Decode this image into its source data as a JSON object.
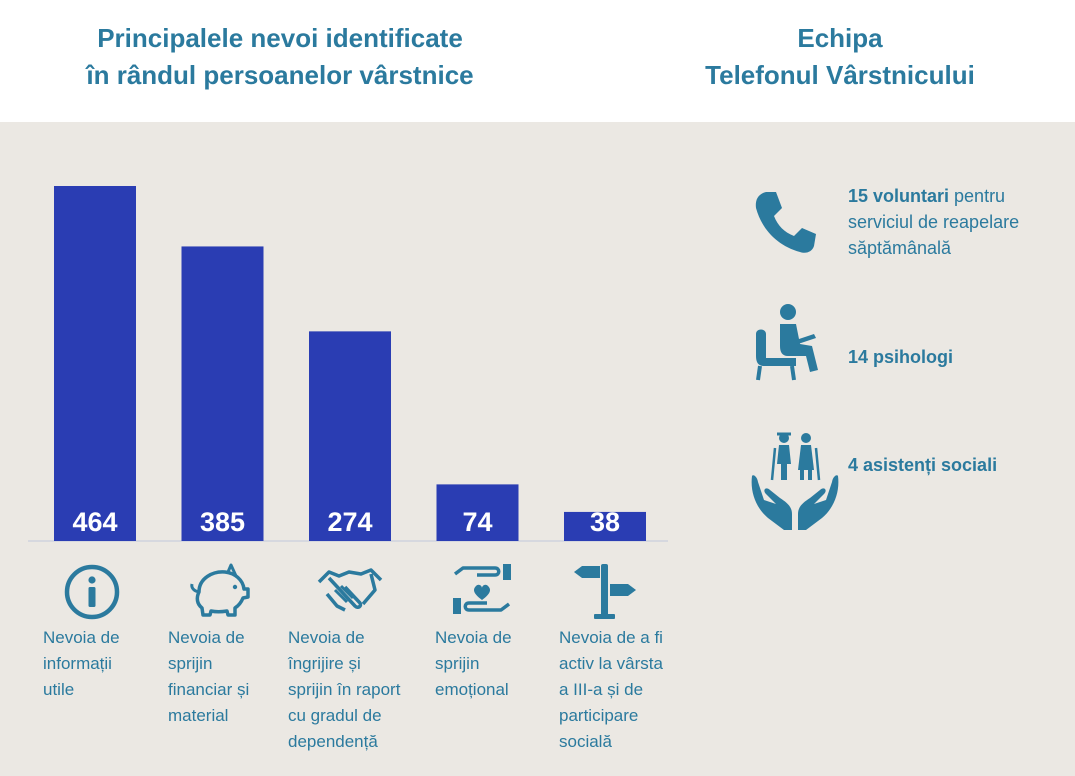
{
  "titles": {
    "left_line1": "Principalele nevoi identificate",
    "left_line2": "în rândul persoanelor vârstnice",
    "right_line1": "Echipa",
    "right_line2": "Telefonul Vârstnicului"
  },
  "colors": {
    "bar": "#2a3db3",
    "accent": "#2b7a9e",
    "panel": "#ebe8e3",
    "value_label": "#ffffff"
  },
  "chart_data": {
    "type": "bar",
    "title": "Principalele nevoi identificate în rândul persoanelor vârstnice",
    "categories": [
      "Nevoia de informații utile",
      "Nevoia de sprijin financiar și material",
      "Nevoia de îngrijire și sprijin în raport cu gradul de dependență",
      "Nevoia de sprijin emoțional",
      "Nevoia de a fi activ la vârsta a III-a și de participare socială"
    ],
    "values": [
      464,
      385,
      274,
      74,
      38
    ],
    "ylim": [
      0,
      464
    ],
    "grid": false,
    "data_labels": true
  },
  "categories": [
    {
      "label": "Nevoia de\ninformații\nutile",
      "icon": "info-icon"
    },
    {
      "label": "Nevoia de\nsprijin\nfinanciar și\nmaterial",
      "icon": "piggy-bank-icon"
    },
    {
      "label": "Nevoia de\nîngrijire și\nsprijin în raport\ncu gradul de\ndependență",
      "icon": "handshake-icon"
    },
    {
      "label": "Nevoia de\nsprijin\nemoțional",
      "icon": "heart-hand-icon"
    },
    {
      "label": "Nevoia de a fi\nactiv la vârsta\na III-a și de\nparticipare\nsocială",
      "icon": "signpost-icon"
    }
  ],
  "team": [
    {
      "bold": "15 voluntari",
      "rest": " pentru\nserviciul de reapelare\nsăptămânală",
      "icon": "phone-icon"
    },
    {
      "bold": "14 psihologi",
      "rest": "",
      "icon": "psychologist-icon"
    },
    {
      "bold": "4 asistenți sociali",
      "rest": "",
      "icon": "caring-hands-icon"
    }
  ]
}
